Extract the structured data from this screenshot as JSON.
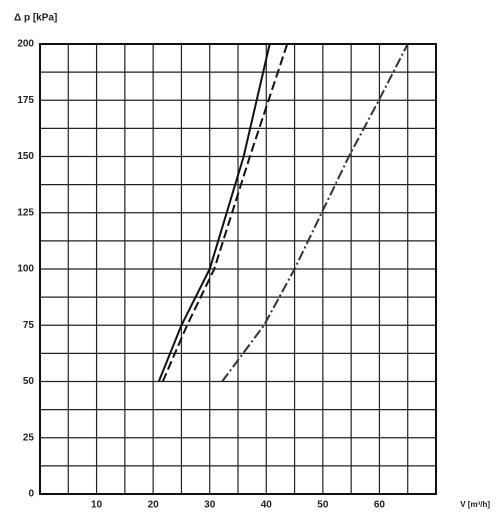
{
  "chart_data": {
    "type": "line",
    "y_label": "Δ p [kPa]",
    "x_label": "V [m³/h]",
    "xlim": [
      0,
      70
    ],
    "xticks": [
      10,
      20,
      30,
      40,
      50,
      60
    ],
    "ylim": [
      0,
      200
    ],
    "yticks": [
      0,
      25,
      50,
      75,
      100,
      125,
      150,
      175,
      200
    ],
    "grid": true,
    "series": [
      {
        "color": "#111111",
        "dash": "solid",
        "x": [
          21,
          25,
          30,
          36,
          40.6
        ],
        "values": [
          50,
          75,
          100,
          150,
          200
        ]
      },
      {
        "color": "#111111",
        "dash": "dashed",
        "x": [
          21.7,
          26,
          30.8,
          37.1,
          43.7
        ],
        "values": [
          50,
          75,
          100,
          150,
          200
        ]
      },
      {
        "color": "#333333",
        "dash": "dashdot",
        "x": [
          32.2,
          39.6,
          45,
          49.8,
          54.6,
          59.9,
          65
        ],
        "values": [
          50,
          75,
          100,
          125,
          150,
          175,
          200
        ]
      }
    ]
  }
}
